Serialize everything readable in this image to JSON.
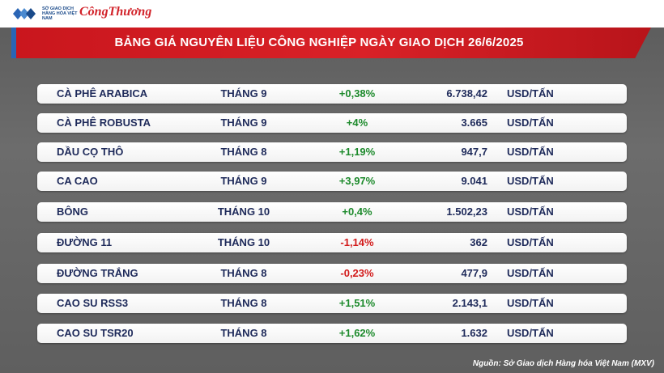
{
  "header": {
    "org_logo_text": "SỞ GIAO DỊCH HÀNG HÓA VIỆT NAM",
    "brand_logo_text": "CôngThương",
    "title": "BẢNG GIÁ NGUYÊN LIỆU CÔNG NGHIỆP NGÀY GIAO DỊCH 26/6/2025"
  },
  "colors": {
    "title_bar": "#d92127",
    "accent_blue": "#2a65b5",
    "positive": "#1d8a2c",
    "negative": "#d21a1a",
    "text": "#1e2a5a"
  },
  "rows": [
    {
      "name": "CÀ PHÊ ARABICA",
      "month": "THÁNG 9",
      "change": "+0,38%",
      "direction": "up",
      "price": "6.738,42",
      "unit": "USD/TẤN"
    },
    {
      "name": "CÀ PHÊ ROBUSTA",
      "month": "THÁNG 9",
      "change": "+4%",
      "direction": "up",
      "price": "3.665",
      "unit": "USD/TẤN"
    },
    {
      "name": "DẦU CỌ THÔ",
      "month": "THÁNG 8",
      "change": "+1,19%",
      "direction": "up",
      "price": "947,7",
      "unit": "USD/TẤN"
    },
    {
      "name": "CA CAO",
      "month": "THÁNG 9",
      "change": "+3,97%",
      "direction": "up",
      "price": "9.041",
      "unit": "USD/TẤN"
    },
    {
      "name": "BÔNG",
      "month": "THÁNG 10",
      "change": "+0,4%",
      "direction": "up",
      "price": "1.502,23",
      "unit": "USD/TẤN"
    },
    {
      "name": "ĐƯỜNG 11",
      "month": "THÁNG 10",
      "change": "-1,14%",
      "direction": "down",
      "price": "362",
      "unit": "USD/TẤN"
    },
    {
      "name": "ĐƯỜNG TRẮNG",
      "month": "THÁNG 8",
      "change": "-0,23%",
      "direction": "down",
      "price": "477,9",
      "unit": "USD/TẤN"
    },
    {
      "name": "CAO SU RSS3",
      "month": "THÁNG 8",
      "change": "+1,51%",
      "direction": "up",
      "price": "2.143,1",
      "unit": "USD/TẤN"
    },
    {
      "name": "CAO SU TSR20",
      "month": "THÁNG 8",
      "change": "+1,62%",
      "direction": "up",
      "price": "1.632",
      "unit": "USD/TẤN"
    }
  ],
  "footer": {
    "source": "Nguồn: Sở Giao dịch Hàng hóa Việt Nam (MXV)"
  }
}
